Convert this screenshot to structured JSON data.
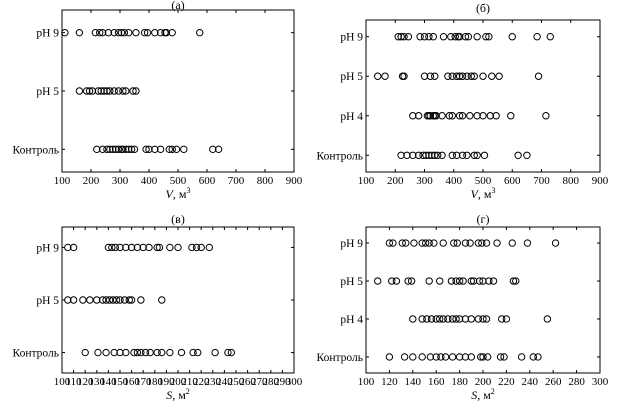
{
  "chart_data": [
    {
      "type": "scatter",
      "panel_label": "(а)",
      "categories": [
        "Контроль",
        "pH 5",
        "pH 9"
      ],
      "xlabel_var": "V",
      "xlabel_unit": ", м",
      "xlabel_sup": "3",
      "xlim": [
        100,
        900
      ],
      "xticks": [
        100,
        200,
        300,
        400,
        500,
        600,
        700,
        800,
        900
      ],
      "series": [
        {
          "category": "pH 9",
          "values": [
            110,
            160,
            215,
            230,
            240,
            260,
            280,
            295,
            305,
            315,
            330,
            355,
            385,
            395,
            420,
            440,
            455,
            460,
            480,
            575
          ]
        },
        {
          "category": "pH 5",
          "values": [
            160,
            185,
            195,
            205,
            225,
            235,
            245,
            255,
            265,
            280,
            295,
            310,
            320,
            345,
            355
          ]
        },
        {
          "category": "Контроль",
          "values": [
            220,
            240,
            255,
            265,
            275,
            285,
            295,
            305,
            310,
            320,
            330,
            340,
            350,
            390,
            400,
            420,
            440,
            470,
            480,
            495,
            520,
            620,
            640
          ]
        }
      ]
    },
    {
      "type": "scatter",
      "panel_label": "(б)",
      "categories": [
        "Контроль",
        "pH 4",
        "pH 5",
        "pH 9"
      ],
      "xlabel_var": "V",
      "xlabel_unit": ", м",
      "xlabel_sup": "3",
      "xlim": [
        100,
        900
      ],
      "xticks": [
        100,
        200,
        300,
        400,
        500,
        600,
        700,
        800,
        900
      ],
      "series": [
        {
          "category": "pH 9",
          "values": [
            210,
            220,
            230,
            245,
            285,
            300,
            315,
            330,
            365,
            390,
            405,
            415,
            420,
            440,
            450,
            480,
            510,
            520,
            600,
            685,
            730
          ]
        },
        {
          "category": "pH 5",
          "values": [
            140,
            165,
            225,
            230,
            300,
            320,
            335,
            380,
            395,
            410,
            420,
            430,
            445,
            460,
            470,
            500,
            530,
            555,
            690
          ]
        },
        {
          "category": "pH 4",
          "values": [
            260,
            280,
            310,
            315,
            320,
            330,
            335,
            340,
            360,
            385,
            395,
            420,
            430,
            455,
            480,
            500,
            525,
            545,
            595,
            715
          ]
        },
        {
          "category": "Контроль",
          "values": [
            220,
            240,
            260,
            280,
            295,
            305,
            315,
            325,
            335,
            345,
            360,
            395,
            410,
            430,
            445,
            470,
            480,
            505,
            620,
            650
          ]
        }
      ]
    },
    {
      "type": "scatter",
      "panel_label": "(в)",
      "categories": [
        "Контроль",
        "pH 5",
        "pH 9"
      ],
      "xlabel_var": "S",
      "xlabel_unit": ", м",
      "xlabel_sup": "2",
      "xlim": [
        100,
        300
      ],
      "xticks": [
        100,
        110,
        120,
        130,
        140,
        150,
        160,
        170,
        180,
        190,
        200,
        210,
        220,
        230,
        240,
        250,
        260,
        270,
        280,
        290,
        300
      ],
      "series": [
        {
          "category": "pH 9",
          "values": [
            105,
            110,
            140,
            143,
            146,
            150,
            155,
            160,
            165,
            170,
            175,
            182,
            184,
            193,
            200,
            212,
            216,
            220,
            227
          ]
        },
        {
          "category": "pH 5",
          "values": [
            105,
            110,
            118,
            124,
            130,
            135,
            138,
            141,
            144,
            147,
            150,
            154,
            158,
            160,
            168,
            186
          ]
        },
        {
          "category": "Контроль",
          "values": [
            120,
            131,
            138,
            145,
            150,
            155,
            162,
            165,
            168,
            172,
            176,
            182,
            186,
            193,
            203,
            213,
            217,
            232,
            243,
            246
          ]
        }
      ]
    },
    {
      "type": "scatter",
      "panel_label": "(г)",
      "categories": [
        "Контроль",
        "pH 4",
        "pH 5",
        "pH 9"
      ],
      "xlabel_var": "S",
      "xlabel_unit": ", м",
      "xlabel_sup": "2",
      "xlim": [
        100,
        300
      ],
      "xticks": [
        100,
        120,
        140,
        160,
        180,
        200,
        220,
        240,
        260,
        280,
        300
      ],
      "series": [
        {
          "category": "pH 9",
          "values": [
            120,
            123,
            131,
            134,
            141,
            148,
            151,
            154,
            158,
            166,
            175,
            178,
            185,
            189,
            196,
            199,
            203,
            212,
            225,
            238,
            262
          ]
        },
        {
          "category": "pH 5",
          "values": [
            110,
            122,
            126,
            136,
            139,
            154,
            163,
            173,
            177,
            180,
            183,
            190,
            192,
            197,
            200,
            205,
            209,
            226,
            228
          ]
        },
        {
          "category": "pH 4",
          "values": [
            140,
            148,
            152,
            156,
            160,
            163,
            166,
            170,
            174,
            177,
            180,
            185,
            190,
            196,
            200,
            203,
            216,
            220,
            255
          ]
        },
        {
          "category": "Контроль",
          "values": [
            120,
            133,
            140,
            148,
            155,
            160,
            164,
            168,
            174,
            180,
            185,
            190,
            198,
            200,
            204,
            215,
            218,
            233,
            243,
            247
          ]
        }
      ]
    }
  ]
}
